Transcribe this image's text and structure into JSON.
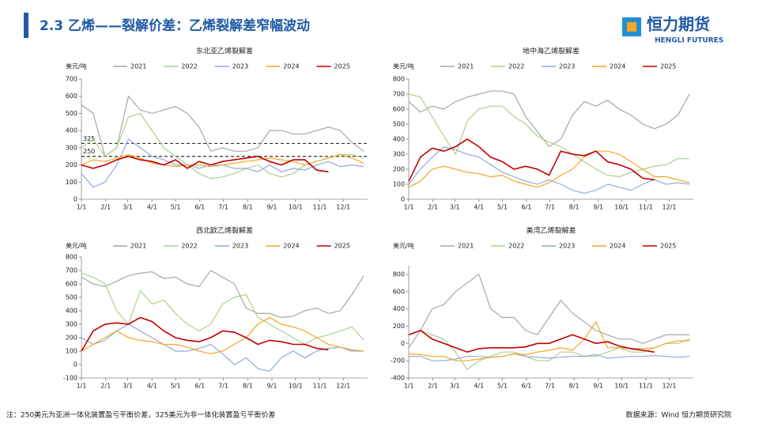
{
  "header": {
    "title": "2.3  乙烯——裂解价差：乙烯裂解差窄幅波动",
    "logo": "恒力期货",
    "logo_sub": "HENGLI FUTURES"
  },
  "footer": {
    "note": "注：250美元为亚洲一体化装置盈亏平衡价差，325美元为非一体化装置盈亏平衡价差",
    "source": "数据来源：Wind  恒力期货研究院"
  },
  "chart_data": [
    {
      "type": "line",
      "title": "东北亚乙烯裂解差",
      "y_label": "美元/吨",
      "x": [
        0,
        15,
        30,
        45,
        60,
        75,
        90,
        105,
        120,
        135,
        150,
        165,
        180,
        195,
        210,
        225,
        240,
        255,
        270,
        285,
        300,
        315,
        330,
        345,
        360
      ],
      "xlim": [
        0,
        365
      ],
      "xticks": [
        {
          "value": 0,
          "label": "1/1"
        },
        {
          "value": 31,
          "label": "2/1"
        },
        {
          "value": 59,
          "label": "3/1"
        },
        {
          "value": 90,
          "label": "4/1"
        },
        {
          "value": 120,
          "label": "5/1"
        },
        {
          "value": 151,
          "label": "6/1"
        },
        {
          "value": 181,
          "label": "7/1"
        },
        {
          "value": 212,
          "label": "8/1"
        },
        {
          "value": 243,
          "label": "9/1"
        },
        {
          "value": 273,
          "label": "10/1"
        },
        {
          "value": 304,
          "label": "11/1"
        },
        {
          "value": 334,
          "label": "12/1"
        }
      ],
      "ylim": [
        0,
        700
      ],
      "yticks": [
        0,
        100,
        200,
        300,
        400,
        500,
        600,
        700
      ],
      "reference_lines": [
        325,
        250
      ],
      "series": [
        {
          "name": "2021",
          "color": "#a6a6a6",
          "values": [
            550,
            500,
            250,
            300,
            600,
            520,
            500,
            520,
            540,
            500,
            420,
            280,
            300,
            280,
            280,
            300,
            400,
            400,
            380,
            380,
            400,
            420,
            400,
            330,
            280
          ]
        },
        {
          "name": "2022",
          "color": "#a9d18e",
          "values": [
            300,
            350,
            250,
            300,
            480,
            500,
            400,
            300,
            250,
            200,
            150,
            120,
            130,
            150,
            180,
            200,
            150,
            130,
            150,
            200,
            220,
            240,
            260,
            260,
            240
          ]
        },
        {
          "name": "2023",
          "color": "#8faadc",
          "values": [
            150,
            70,
            100,
            200,
            350,
            300,
            250,
            230,
            200,
            200,
            180,
            200,
            200,
            180,
            180,
            160,
            200,
            160,
            180,
            170,
            200,
            220,
            190,
            200,
            190
          ]
        },
        {
          "name": "2024",
          "color": "#f5a623",
          "values": [
            200,
            230,
            220,
            240,
            260,
            240,
            210,
            200,
            190,
            200,
            200,
            190,
            200,
            210,
            220,
            230,
            240,
            230,
            220,
            200,
            220,
            240,
            260,
            240,
            210
          ]
        },
        {
          "name": "2025",
          "color": "#c00000",
          "values": [
            200,
            180,
            200,
            230,
            250,
            230,
            220,
            200,
            230,
            180,
            220,
            200,
            220,
            230,
            240,
            250,
            220,
            200,
            230,
            230,
            170,
            160,
            null,
            null,
            null
          ]
        }
      ]
    },
    {
      "type": "line",
      "title": "地中海乙烯裂解差",
      "y_label": "美元/吨",
      "x": [
        0,
        15,
        30,
        45,
        60,
        75,
        90,
        105,
        120,
        135,
        150,
        165,
        180,
        195,
        210,
        225,
        240,
        255,
        270,
        285,
        300,
        315,
        330,
        345,
        360
      ],
      "xlim": [
        0,
        365
      ],
      "xticks": [
        {
          "value": 0,
          "label": "1/1"
        },
        {
          "value": 31,
          "label": "2/1"
        },
        {
          "value": 59,
          "label": "3/1"
        },
        {
          "value": 90,
          "label": "4/1"
        },
        {
          "value": 120,
          "label": "5/1"
        },
        {
          "value": 151,
          "label": "6/1"
        },
        {
          "value": 181,
          "label": "7/1"
        },
        {
          "value": 212,
          "label": "8/1"
        },
        {
          "value": 243,
          "label": "9/1"
        },
        {
          "value": 273,
          "label": "10/1"
        },
        {
          "value": 304,
          "label": "11/1"
        },
        {
          "value": 334,
          "label": "12/1"
        }
      ],
      "ylim": [
        0,
        800
      ],
      "yticks": [
        0,
        100,
        200,
        300,
        400,
        500,
        600,
        700,
        800
      ],
      "series": [
        {
          "name": "2021",
          "color": "#a6a6a6",
          "values": [
            650,
            580,
            620,
            600,
            650,
            680,
            700,
            720,
            720,
            700,
            550,
            450,
            350,
            400,
            560,
            650,
            620,
            660,
            600,
            560,
            500,
            470,
            500,
            560,
            700
          ]
        },
        {
          "name": "2022",
          "color": "#a9d18e",
          "values": [
            700,
            680,
            550,
            420,
            300,
            520,
            600,
            620,
            620,
            550,
            500,
            420,
            380,
            350,
            300,
            250,
            200,
            160,
            150,
            180,
            200,
            220,
            230,
            270,
            270
          ]
        },
        {
          "name": "2023",
          "color": "#8faadc",
          "values": [
            100,
            200,
            280,
            350,
            330,
            300,
            280,
            230,
            180,
            150,
            120,
            100,
            130,
            100,
            60,
            40,
            60,
            100,
            80,
            60,
            100,
            130,
            100,
            110,
            100
          ]
        },
        {
          "name": "2024",
          "color": "#f5a623",
          "values": [
            80,
            120,
            200,
            220,
            200,
            180,
            170,
            150,
            160,
            120,
            100,
            80,
            110,
            160,
            200,
            280,
            320,
            320,
            300,
            250,
            200,
            150,
            150,
            130,
            110
          ]
        },
        {
          "name": "2025",
          "color": "#c00000",
          "values": [
            120,
            280,
            340,
            320,
            350,
            400,
            350,
            280,
            250,
            200,
            220,
            200,
            160,
            320,
            300,
            290,
            320,
            250,
            230,
            200,
            140,
            130,
            null,
            null,
            null
          ]
        }
      ]
    },
    {
      "type": "line",
      "title": "西北欧乙烯裂解差",
      "y_label": "美元/吨",
      "x": [
        0,
        15,
        30,
        45,
        60,
        75,
        90,
        105,
        120,
        135,
        150,
        165,
        180,
        195,
        210,
        225,
        240,
        255,
        270,
        285,
        300,
        315,
        330,
        345,
        360
      ],
      "xlim": [
        0,
        365
      ],
      "xticks": [
        {
          "value": 0,
          "label": "1/1"
        },
        {
          "value": 31,
          "label": "2/1"
        },
        {
          "value": 59,
          "label": "3/1"
        },
        {
          "value": 90,
          "label": "4/1"
        },
        {
          "value": 120,
          "label": "5/1"
        },
        {
          "value": 151,
          "label": "6/1"
        },
        {
          "value": 181,
          "label": "7/1"
        },
        {
          "value": 212,
          "label": "8/1"
        },
        {
          "value": 243,
          "label": "9/1"
        },
        {
          "value": 273,
          "label": "10/1"
        },
        {
          "value": 304,
          "label": "11/1"
        },
        {
          "value": 334,
          "label": "12/1"
        }
      ],
      "ylim": [
        -100,
        800
      ],
      "yticks": [
        -100,
        0,
        100,
        200,
        300,
        400,
        500,
        600,
        700,
        800
      ],
      "series": [
        {
          "name": "2021",
          "color": "#a6a6a6",
          "values": [
            650,
            600,
            580,
            620,
            660,
            680,
            690,
            640,
            650,
            600,
            580,
            700,
            650,
            600,
            420,
            380,
            380,
            350,
            360,
            400,
            420,
            380,
            400,
            520,
            660
          ]
        },
        {
          "name": "2022",
          "color": "#a9d18e",
          "values": [
            680,
            650,
            600,
            400,
            300,
            550,
            450,
            480,
            380,
            300,
            250,
            300,
            450,
            500,
            520,
            350,
            300,
            250,
            200,
            150,
            200,
            220,
            250,
            280,
            180
          ]
        },
        {
          "name": "2023",
          "color": "#8faadc",
          "values": [
            200,
            150,
            180,
            250,
            300,
            250,
            200,
            150,
            100,
            100,
            120,
            150,
            80,
            0,
            50,
            -30,
            -50,
            50,
            100,
            50,
            100,
            120,
            130,
            100,
            100
          ]
        },
        {
          "name": "2024",
          "color": "#f5a623",
          "values": [
            100,
            150,
            200,
            250,
            200,
            180,
            170,
            150,
            150,
            130,
            100,
            80,
            100,
            150,
            200,
            300,
            350,
            300,
            280,
            250,
            200,
            150,
            130,
            110,
            100
          ]
        },
        {
          "name": "2025",
          "color": "#c00000",
          "values": [
            100,
            250,
            300,
            310,
            300,
            350,
            320,
            250,
            200,
            180,
            170,
            200,
            250,
            240,
            200,
            150,
            180,
            170,
            150,
            150,
            120,
            110,
            null,
            null,
            null
          ]
        }
      ]
    },
    {
      "type": "line",
      "title": "美湾乙烯裂解差",
      "y_label": "美元/吨",
      "x": [
        0,
        15,
        30,
        45,
        60,
        75,
        90,
        105,
        120,
        135,
        150,
        165,
        180,
        195,
        210,
        225,
        240,
        255,
        270,
        285,
        300,
        315,
        330,
        345,
        360
      ],
      "xlim": [
        0,
        365
      ],
      "xticks": [
        {
          "value": 0,
          "label": "1/1"
        },
        {
          "value": 31,
          "label": "2/1"
        },
        {
          "value": 59,
          "label": "3/1"
        },
        {
          "value": 90,
          "label": "4/1"
        },
        {
          "value": 120,
          "label": "5/1"
        },
        {
          "value": 151,
          "label": "6/1"
        },
        {
          "value": 181,
          "label": "7/1"
        },
        {
          "value": 212,
          "label": "8/1"
        },
        {
          "value": 243,
          "label": "9/1"
        },
        {
          "value": 273,
          "label": "10/1"
        },
        {
          "value": 304,
          "label": "11/1"
        },
        {
          "value": 334,
          "label": "12/1"
        }
      ],
      "ylim": [
        -400,
        900
      ],
      "yticks": [
        -400,
        -200,
        0,
        200,
        400,
        600,
        800
      ],
      "series": [
        {
          "name": "2021",
          "color": "#a6a6a6",
          "values": [
            -50,
            150,
            400,
            450,
            600,
            700,
            800,
            400,
            300,
            300,
            150,
            100,
            300,
            500,
            350,
            250,
            150,
            100,
            50,
            50,
            0,
            50,
            100,
            100,
            100
          ]
        },
        {
          "name": "2022",
          "color": "#a9d18e",
          "values": [
            100,
            150,
            100,
            50,
            -100,
            -300,
            -200,
            -150,
            -100,
            -100,
            -150,
            -200,
            -200,
            -100,
            -100,
            -150,
            -150,
            -100,
            -50,
            -100,
            -100,
            -50,
            0,
            0,
            50
          ]
        },
        {
          "name": "2023",
          "color": "#8faadc",
          "values": [
            -150,
            -150,
            -200,
            -200,
            -180,
            -150,
            -150,
            -160,
            -150,
            -120,
            -150,
            -160,
            -170,
            -160,
            -150,
            -150,
            -130,
            -170,
            -160,
            -150,
            -150,
            -140,
            -150,
            -160,
            -150
          ]
        },
        {
          "name": "2024",
          "color": "#f5a623",
          "values": [
            -120,
            -130,
            -150,
            -150,
            -200,
            -200,
            -180,
            -160,
            -150,
            -120,
            -130,
            -100,
            -80,
            -50,
            -80,
            50,
            250,
            -50,
            -50,
            -60,
            -60,
            -50,
            0,
            30,
            30
          ]
        },
        {
          "name": "2025",
          "color": "#c00000",
          "values": [
            100,
            150,
            50,
            0,
            -50,
            -100,
            -60,
            -50,
            -50,
            -50,
            -40,
            0,
            0,
            50,
            100,
            50,
            0,
            20,
            -30,
            -60,
            -80,
            -100,
            null,
            null,
            null
          ]
        }
      ]
    }
  ]
}
